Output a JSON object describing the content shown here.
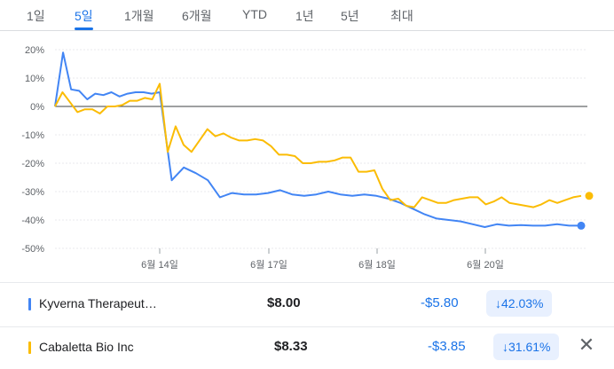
{
  "tabs": [
    {
      "label": "1일",
      "active": false
    },
    {
      "label": "5일",
      "active": true
    },
    {
      "label": "1개월",
      "active": false
    },
    {
      "label": "6개월",
      "active": false
    },
    {
      "label": "YTD",
      "active": false
    },
    {
      "label": "1년",
      "active": false
    },
    {
      "label": "5년",
      "active": false
    },
    {
      "label": "최대",
      "active": false
    }
  ],
  "chart_data": {
    "type": "line",
    "ylim": [
      -52,
      22
    ],
    "y_ticks": [
      20,
      10,
      0,
      -10,
      -20,
      -30,
      -40,
      -50
    ],
    "y_tick_labels": [
      "20%",
      "10%",
      "0%",
      "-10%",
      "-20%",
      "-30%",
      "-40%",
      "-50%"
    ],
    "x_tick_labels": [
      "6월 14일",
      "6월 17일",
      "6월 18일",
      "6월 20일"
    ],
    "x_tick_index": [
      10,
      20,
      30,
      40
    ],
    "grid": true,
    "series": [
      {
        "name": "Kyverna Therapeutics",
        "color": "#4285f4",
        "values": [
          0,
          19,
          6,
          5.5,
          2.5,
          4.5,
          4,
          5,
          3.5,
          4.5,
          5,
          5,
          4.5,
          5,
          -26,
          -21.5,
          -23.5,
          -26,
          -32,
          -30.5,
          -31,
          -31,
          -30.5,
          -29.5,
          -31,
          -31.5,
          -31,
          -30,
          -31,
          -31.5,
          -31,
          -31.5,
          -32.5,
          -34,
          -36,
          -38,
          -39.5,
          -40,
          -40.5,
          -41.5,
          -42.5,
          -41.5,
          -42,
          -41.8,
          -42,
          -42,
          -41.5,
          -42,
          -42
        ]
      },
      {
        "name": "Cabaletta Bio Inc",
        "color": "#fbbc04",
        "values": [
          0,
          5,
          1.5,
          -2,
          -1,
          -1,
          -2.5,
          0,
          0,
          0.5,
          2,
          2,
          3,
          2.5,
          8,
          -16,
          -7,
          -13.5,
          -16,
          -12,
          -8,
          -10.5,
          -9.5,
          -11,
          -12,
          -12,
          -11.5,
          -12,
          -14,
          -17,
          -17,
          -17.5,
          -20,
          -20,
          -19.5,
          -19.5,
          -19,
          -18,
          -18,
          -23,
          -23,
          -22.5,
          -29,
          -33,
          -32.5,
          -35,
          -35.5,
          -32,
          -33,
          -34,
          -34,
          -33,
          -32.5,
          -32,
          -32,
          -34.5,
          -33.5,
          -32,
          -34,
          -34.5,
          -35,
          -35.5,
          -34.5,
          -33,
          -34,
          -33,
          -32,
          -31.5
        ]
      }
    ]
  },
  "legend": [
    {
      "name": "Kyverna Therapeut…",
      "color": "#4285f4",
      "price": "$8.00",
      "change": "-$5.80",
      "pct": "↓42.03%",
      "pct_value": -42.03
    },
    {
      "name": "Cabaletta Bio Inc",
      "color": "#fbbc04",
      "price": "$8.33",
      "change": "-$3.85",
      "pct": "↓31.61%",
      "pct_value": -31.61,
      "close_icon": "close-icon",
      "close": "✕"
    }
  ]
}
